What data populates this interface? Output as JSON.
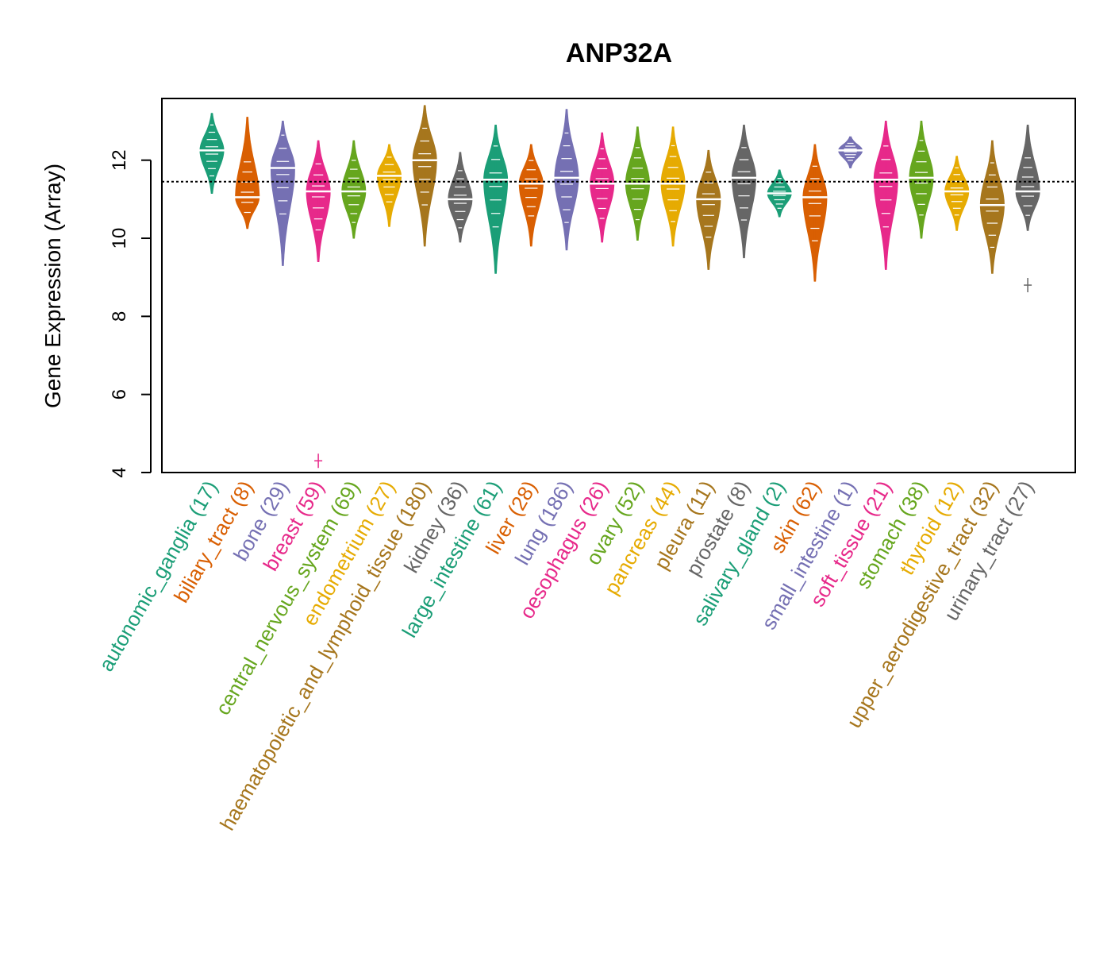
{
  "chart_data": {
    "type": "violin",
    "title": "ANP32A",
    "xlabel": "",
    "ylabel": "Gene Expression (Array)",
    "ylim": [
      4,
      13.6
    ],
    "yticks": [
      4,
      6,
      8,
      10,
      12
    ],
    "reference_line": 11.45,
    "categories": [
      {
        "label": "autonomic_ganglia (17)",
        "color": "#1B9E77",
        "median": 12.25,
        "min": 11.15,
        "max": 13.2,
        "outliers": []
      },
      {
        "label": "biliary_tract (8)",
        "color": "#D95F02",
        "median": 11.05,
        "min": 10.25,
        "max": 13.1,
        "outliers": []
      },
      {
        "label": "bone (29)",
        "color": "#7570B3",
        "median": 11.8,
        "min": 9.3,
        "max": 13.0,
        "outliers": []
      },
      {
        "label": "breast (59)",
        "color": "#E7298A",
        "median": 11.2,
        "min": 9.4,
        "max": 12.5,
        "outliers": [
          4.3
        ]
      },
      {
        "label": "central_nervous_system (69)",
        "color": "#66A61E",
        "median": 11.2,
        "min": 10.0,
        "max": 12.5,
        "outliers": []
      },
      {
        "label": "endometrium (27)",
        "color": "#E6AB02",
        "median": 11.6,
        "min": 10.3,
        "max": 12.4,
        "outliers": []
      },
      {
        "label": "haematopoietic_and_lymphoid_tissue (180)",
        "color": "#A6761D",
        "median": 12.0,
        "min": 9.8,
        "max": 13.4,
        "outliers": []
      },
      {
        "label": "kidney (36)",
        "color": "#666666",
        "median": 11.0,
        "min": 9.9,
        "max": 12.2,
        "outliers": []
      },
      {
        "label": "large_intestine (61)",
        "color": "#1B9E77",
        "median": 11.5,
        "min": 9.1,
        "max": 12.9,
        "outliers": []
      },
      {
        "label": "liver (28)",
        "color": "#D95F02",
        "median": 11.4,
        "min": 9.8,
        "max": 12.4,
        "outliers": []
      },
      {
        "label": "lung (186)",
        "color": "#7570B3",
        "median": 11.55,
        "min": 9.7,
        "max": 13.3,
        "outliers": []
      },
      {
        "label": "oesophagus (26)",
        "color": "#E7298A",
        "median": 11.4,
        "min": 9.9,
        "max": 12.7,
        "outliers": []
      },
      {
        "label": "ovary (52)",
        "color": "#66A61E",
        "median": 11.4,
        "min": 9.95,
        "max": 12.85,
        "outliers": []
      },
      {
        "label": "pancreas (44)",
        "color": "#E6AB02",
        "median": 11.4,
        "min": 9.8,
        "max": 12.85,
        "outliers": []
      },
      {
        "label": "pleura (11)",
        "color": "#A6761D",
        "median": 11.0,
        "min": 9.2,
        "max": 12.25,
        "outliers": []
      },
      {
        "label": "prostate (8)",
        "color": "#666666",
        "median": 11.55,
        "min": 9.5,
        "max": 12.9,
        "outliers": []
      },
      {
        "label": "salivary_gland (2)",
        "color": "#1B9E77",
        "median": 11.15,
        "min": 10.55,
        "max": 11.75,
        "outliers": []
      },
      {
        "label": "skin (62)",
        "color": "#D95F02",
        "median": 11.05,
        "min": 8.9,
        "max": 12.4,
        "outliers": []
      },
      {
        "label": "small_intestine (1)",
        "color": "#7570B3",
        "median": 12.25,
        "min": 11.8,
        "max": 12.6,
        "outliers": []
      },
      {
        "label": "soft_tissue (21)",
        "color": "#E7298A",
        "median": 11.5,
        "min": 9.2,
        "max": 13.0,
        "outliers": []
      },
      {
        "label": "stomach (38)",
        "color": "#66A61E",
        "median": 11.55,
        "min": 10.0,
        "max": 13.0,
        "outliers": []
      },
      {
        "label": "thyroid (12)",
        "color": "#E6AB02",
        "median": 11.2,
        "min": 10.2,
        "max": 12.1,
        "outliers": []
      },
      {
        "label": "upper_aerodigestive_tract (32)",
        "color": "#A6761D",
        "median": 10.85,
        "min": 9.1,
        "max": 12.5,
        "outliers": []
      },
      {
        "label": "urinary_tract (27)",
        "color": "#666666",
        "median": 11.2,
        "min": 10.2,
        "max": 12.9,
        "outliers": [
          8.8
        ]
      }
    ],
    "grid": false,
    "legend": "none"
  }
}
